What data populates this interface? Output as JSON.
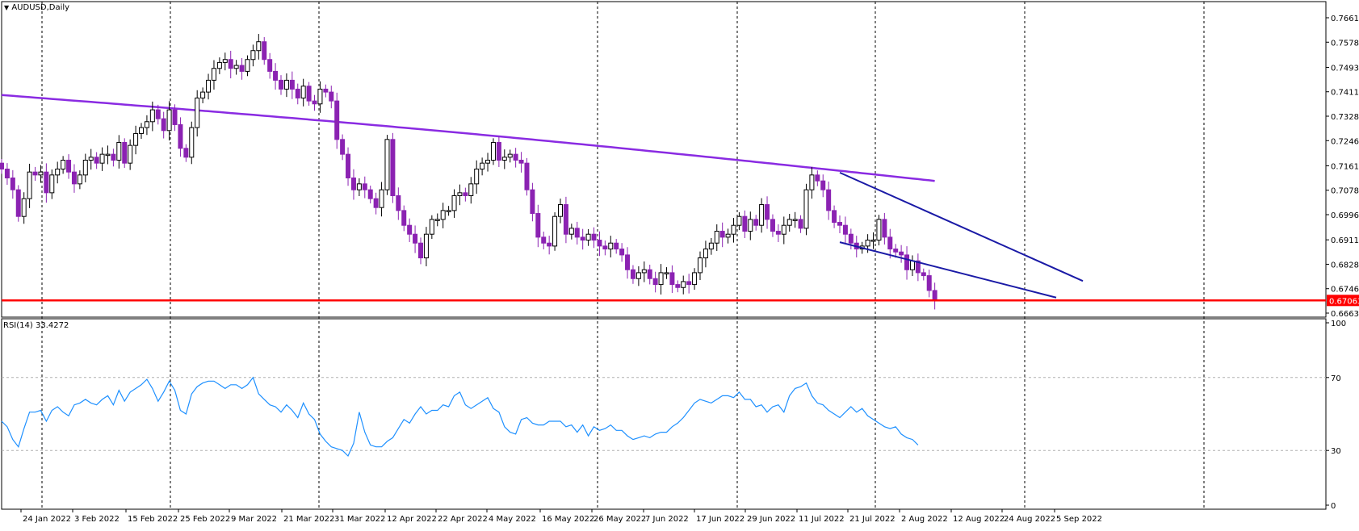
{
  "main_title": "AUDUSD,Daily",
  "rsi_title": "RSI(14) 33.4272",
  "price_label": "0.67063",
  "colors": {
    "bull_candle": "#ffffff",
    "bear_candle": "#8b22b2",
    "ma_line": "#8a2be2",
    "support_line": "#ff0000",
    "wedge_lines": "#1a1aa6",
    "rsi_line": "#1e90ff",
    "grid_dash": "#000000",
    "border": "#000000"
  },
  "chart_data": [
    {
      "type": "candlestick",
      "title": "AUDUSD,Daily",
      "ylim": [
        0.66635,
        0.77
      ],
      "y_ticks": [
        0.7661,
        0.75785,
        0.74935,
        0.7411,
        0.73285,
        0.7246,
        0.7161,
        0.70785,
        0.6996,
        0.6911,
        0.68285,
        0.6746,
        0.66635
      ],
      "x_tick_labels": [
        "24 Jan 2022",
        "3 Feb 2022",
        "15 Feb 2022",
        "25 Feb 2022",
        "9 Mar 2022",
        "21 Mar 2022",
        "31 Mar 2022",
        "12 Apr 2022",
        "22 Apr 2022",
        "4 May 2022",
        "16 May 2022",
        "26 May 2022",
        "7 Jun 2022",
        "17 Jun 2022",
        "29 Jun 2022",
        "11 Jul 2022",
        "21 Jul 2022",
        "2 Aug 2022",
        "12 Aug 2022",
        "24 Aug 2022",
        "5 Sep 2022"
      ],
      "close_series": [
        0.715,
        0.712,
        0.708,
        0.699,
        0.705,
        0.714,
        0.713,
        0.714,
        0.707,
        0.713,
        0.715,
        0.718,
        0.714,
        0.71,
        0.713,
        0.718,
        0.719,
        0.717,
        0.72,
        0.72,
        0.718,
        0.724,
        0.717,
        0.723,
        0.727,
        0.729,
        0.731,
        0.735,
        0.732,
        0.728,
        0.735,
        0.73,
        0.722,
        0.719,
        0.729,
        0.739,
        0.741,
        0.745,
        0.749,
        0.751,
        0.752,
        0.749,
        0.75,
        0.748,
        0.752,
        0.755,
        0.758,
        0.752,
        0.748,
        0.745,
        0.742,
        0.745,
        0.742,
        0.739,
        0.743,
        0.738,
        0.737,
        0.742,
        0.741,
        0.738,
        0.725,
        0.72,
        0.712,
        0.708,
        0.71,
        0.708,
        0.705,
        0.702,
        0.708,
        0.725,
        0.706,
        0.701,
        0.696,
        0.693,
        0.69,
        0.685,
        0.693,
        0.698,
        0.698,
        0.701,
        0.701,
        0.706,
        0.707,
        0.706,
        0.71,
        0.715,
        0.717,
        0.718,
        0.724,
        0.718,
        0.719,
        0.72,
        0.718,
        0.717,
        0.708,
        0.7,
        0.692,
        0.69,
        0.689,
        0.699,
        0.703,
        0.693,
        0.695,
        0.692,
        0.691,
        0.693,
        0.691,
        0.689,
        0.688,
        0.69,
        0.688,
        0.686,
        0.681,
        0.678,
        0.68,
        0.681,
        0.678,
        0.676,
        0.68,
        0.68,
        0.676,
        0.675,
        0.677,
        0.676,
        0.68,
        0.685,
        0.688,
        0.69,
        0.694,
        0.692,
        0.693,
        0.696,
        0.699,
        0.694,
        0.698,
        0.696,
        0.703,
        0.698,
        0.694,
        0.693,
        0.696,
        0.698,
        0.698,
        0.695,
        0.708,
        0.713,
        0.711,
        0.708,
        0.701,
        0.697,
        0.696,
        0.693,
        0.69,
        0.688,
        0.689,
        0.691,
        0.691,
        0.698,
        0.692,
        0.688,
        0.687,
        0.686,
        0.681,
        0.684,
        0.68,
        0.679,
        0.674,
        0.6706
      ]
    },
    {
      "type": "line",
      "title": "RSI(14) 33.4272",
      "ylim": [
        0,
        100
      ],
      "y_ticks": [
        100,
        70,
        30,
        0
      ],
      "values": [
        46,
        43,
        36,
        32,
        42,
        51,
        51,
        52,
        46,
        52,
        54,
        51,
        49,
        55,
        56,
        58,
        56,
        55,
        58,
        60,
        55,
        63,
        57,
        62,
        64,
        66,
        69,
        64,
        57,
        62,
        68,
        63,
        52,
        50,
        61,
        65,
        67,
        68,
        68,
        66,
        64,
        66,
        66,
        64,
        66,
        70,
        61,
        58,
        55,
        54,
        51,
        55,
        52,
        48,
        56,
        50,
        47,
        39,
        35,
        32,
        31,
        30,
        27,
        34,
        51,
        40,
        33,
        32,
        32,
        35,
        37,
        42,
        47,
        45,
        50,
        54,
        50,
        52,
        52,
        55,
        54,
        60,
        62,
        55,
        53,
        55,
        57,
        59,
        53,
        51,
        43,
        40,
        39,
        47,
        48,
        45,
        44,
        44,
        46,
        46,
        46,
        43,
        44,
        40,
        44,
        38,
        43,
        41,
        42,
        44,
        41,
        41,
        38,
        36,
        37,
        38,
        37,
        39,
        40,
        40,
        43,
        45,
        48,
        52,
        56,
        58,
        57,
        56,
        58,
        60,
        60,
        59,
        62,
        58,
        58,
        54,
        55,
        51,
        54,
        55,
        51,
        60,
        64,
        65,
        67,
        60,
        56,
        55,
        52,
        50,
        48,
        51,
        54,
        51,
        53,
        49,
        47,
        45,
        43,
        42,
        43,
        39,
        37,
        36,
        33
      ]
    }
  ]
}
